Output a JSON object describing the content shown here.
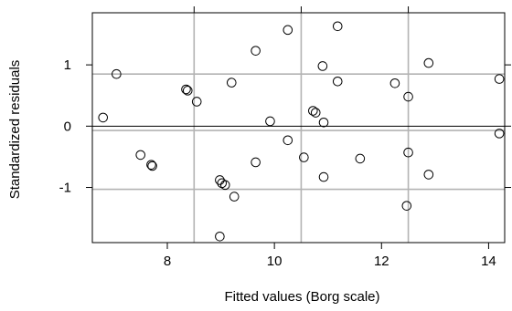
{
  "chart_data": {
    "type": "scatter",
    "title": "",
    "xlabel": "Fitted values (Borg scale)",
    "ylabel": "Standardized residuals",
    "xlim": [
      6.6,
      14.3
    ],
    "ylim": [
      -1.9,
      1.85
    ],
    "xticks": [
      8,
      10,
      12,
      14
    ],
    "yticks": [
      -1,
      0,
      1
    ],
    "xtick_labels": [
      "8",
      "10",
      "12",
      "14"
    ],
    "ytick_labels": [
      "-1",
      "0",
      "1"
    ],
    "top_ticks": [
      8.5,
      10.5,
      12.5
    ],
    "right_ticks": [
      -1,
      0,
      1
    ],
    "vertical_gridlines": [
      8.5,
      10.5,
      12.5
    ],
    "horizontal_gridlines": [
      -1.03,
      -0.07,
      0.85
    ],
    "reference_line_y": 0,
    "marker": "open-circle",
    "colors": {
      "points": "#000000",
      "grid": "#b3b3b3",
      "reference_line": "#000000",
      "frame": "#000000"
    },
    "points": [
      {
        "x": 6.8,
        "y": 0.14
      },
      {
        "x": 7.05,
        "y": 0.85
      },
      {
        "x": 7.5,
        "y": -0.47
      },
      {
        "x": 7.7,
        "y": -0.63
      },
      {
        "x": 7.72,
        "y": -0.65
      },
      {
        "x": 8.35,
        "y": 0.6
      },
      {
        "x": 8.38,
        "y": 0.58
      },
      {
        "x": 8.55,
        "y": 0.4
      },
      {
        "x": 8.98,
        "y": -0.88
      },
      {
        "x": 9.02,
        "y": -0.93
      },
      {
        "x": 9.08,
        "y": -0.96
      },
      {
        "x": 8.98,
        "y": -1.8
      },
      {
        "x": 9.2,
        "y": 0.71
      },
      {
        "x": 9.25,
        "y": -1.15
      },
      {
        "x": 9.65,
        "y": 1.23
      },
      {
        "x": 9.65,
        "y": -0.59
      },
      {
        "x": 9.92,
        "y": 0.08
      },
      {
        "x": 10.25,
        "y": 1.57
      },
      {
        "x": 10.25,
        "y": -0.23
      },
      {
        "x": 10.55,
        "y": -0.51
      },
      {
        "x": 10.72,
        "y": 0.25
      },
      {
        "x": 10.77,
        "y": 0.22
      },
      {
        "x": 10.9,
        "y": 0.98
      },
      {
        "x": 10.92,
        "y": 0.06
      },
      {
        "x": 10.92,
        "y": -0.83
      },
      {
        "x": 11.18,
        "y": 1.63
      },
      {
        "x": 11.18,
        "y": 0.73
      },
      {
        "x": 11.6,
        "y": -0.53
      },
      {
        "x": 12.25,
        "y": 0.7
      },
      {
        "x": 12.5,
        "y": 0.48
      },
      {
        "x": 12.5,
        "y": -0.43
      },
      {
        "x": 12.47,
        "y": -1.3
      },
      {
        "x": 12.88,
        "y": 1.03
      },
      {
        "x": 12.88,
        "y": -0.79
      },
      {
        "x": 14.2,
        "y": 0.77
      },
      {
        "x": 14.2,
        "y": -0.12
      }
    ]
  }
}
